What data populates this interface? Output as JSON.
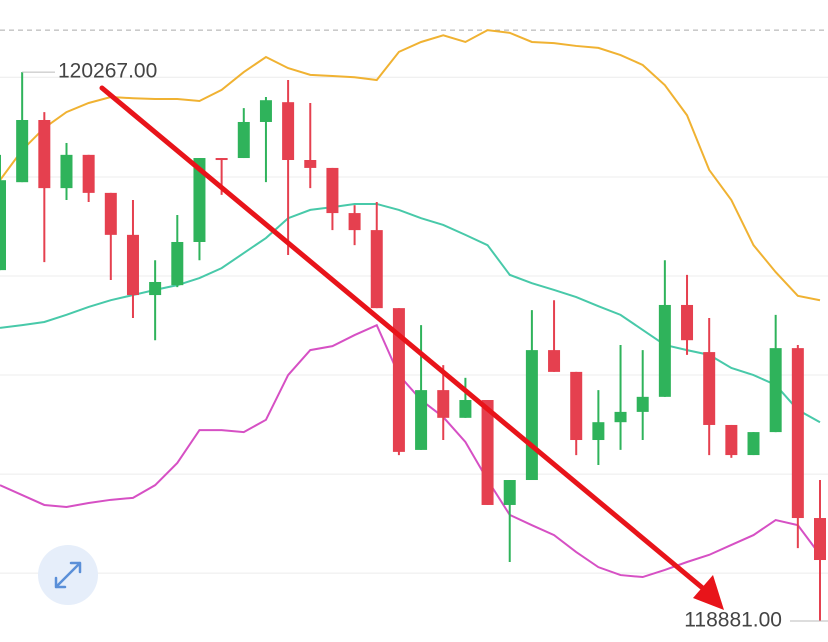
{
  "chart_data": {
    "type": "candlestick",
    "categories": [
      null,
      null,
      null,
      null,
      null,
      null,
      null,
      null,
      null,
      null,
      null,
      null,
      null,
      null,
      null,
      null,
      null,
      null,
      null,
      null,
      null,
      null,
      null,
      null,
      null,
      null,
      null,
      null,
      null,
      null,
      null,
      null,
      null,
      null,
      null,
      null,
      null,
      null
    ],
    "open": [
      119767,
      119989,
      120146,
      119974,
      120058,
      119962,
      119856,
      119704,
      119729,
      119838,
      120050,
      120050,
      120141,
      120191,
      120045,
      120025,
      119911,
      119868,
      119671,
      119313,
      119464,
      119394,
      119439,
      119174,
      119237,
      119565,
      119510,
      119338,
      119383,
      119409,
      119447,
      119679,
      119560,
      119376,
      119300,
      119358,
      119570,
      119141
    ],
    "high": [
      120058,
      120267,
      120166,
      120088,
      120058,
      119962,
      119944,
      119792,
      119906,
      120050,
      120050,
      120176,
      120204,
      120247,
      120189,
      120025,
      119931,
      119939,
      119671,
      119628,
      119527,
      119495,
      119439,
      119237,
      119666,
      119691,
      119510,
      119464,
      119578,
      119565,
      119792,
      119755,
      119646,
      119376,
      119358,
      119654,
      119578,
      119237
    ],
    "low": [
      119767,
      119989,
      119787,
      119944,
      119939,
      119742,
      119646,
      119590,
      119724,
      119792,
      119957,
      120050,
      119989,
      119805,
      119974,
      119868,
      119830,
      119671,
      119300,
      119313,
      119338,
      119394,
      119174,
      119030,
      119237,
      119510,
      119300,
      119275,
      119313,
      119338,
      119447,
      119553,
      119300,
      119293,
      119300,
      119358,
      119065,
      118881
    ],
    "close": [
      119994,
      120146,
      119974,
      120058,
      119962,
      119856,
      119704,
      119737,
      119838,
      120050,
      120045,
      120141,
      120196,
      120045,
      120025,
      119911,
      119868,
      119671,
      119308,
      119464,
      119394,
      119439,
      119174,
      119237,
      119565,
      119510,
      119338,
      119383,
      119409,
      119447,
      119679,
      119590,
      119376,
      119300,
      119358,
      119570,
      119141,
      119035
    ],
    "up_color": "#2fb35b",
    "down_color": "#e5404f",
    "series": [
      {
        "color": "#f0b232",
        "values": [
          119994,
          120070,
          120126,
          120166,
          120189,
          120204,
          120201,
          120199,
          120199,
          120194,
          120222,
          120267,
          120305,
          120277,
          120260,
          120257,
          120254,
          120247,
          120318,
          120343,
          120360,
          120343,
          120373,
          120366,
          120343,
          120340,
          120333,
          120328,
          120310,
          120285,
          120234,
          120158,
          120020,
          119944,
          119830,
          119762,
          119702,
          119691
        ]
      },
      {
        "color": "#48c9a9",
        "values": [
          119621,
          119628,
          119636,
          119654,
          119674,
          119691,
          119704,
          119717,
          119729,
          119747,
          119772,
          119810,
          119848,
          119898,
          119919,
          119926,
          119934,
          119934,
          119919,
          119898,
          119881,
          119856,
          119830,
          119755,
          119734,
          119717,
          119699,
          119676,
          119654,
          119616,
          119578,
          119565,
          119553,
          119520,
          119502,
          119477,
          119414,
          119383
        ]
      },
      {
        "color": "#d650c4",
        "values": [
          119224,
          119199,
          119174,
          119169,
          119179,
          119187,
          119192,
          119224,
          119280,
          119363,
          119363,
          119358,
          119389,
          119502,
          119565,
          119575,
          119603,
          119628,
          119502,
          119439,
          119396,
          119333,
          119237,
          119149,
          119123,
          119098,
          119055,
          119017,
          118997,
          118992,
          119010,
          119030,
          119048,
          119073,
          119098,
          119136,
          119123,
          119048
        ]
      }
    ],
    "annotations": [
      {
        "value": 120267,
        "label": "120267.00"
      },
      {
        "value": 118881,
        "label": "118881.00"
      }
    ],
    "ylim": [
      118828,
      120449
    ],
    "grid_values": [
      120254,
      120002,
      119752,
      119502,
      119252,
      119002
    ],
    "dashed_line": 120373
  }
}
